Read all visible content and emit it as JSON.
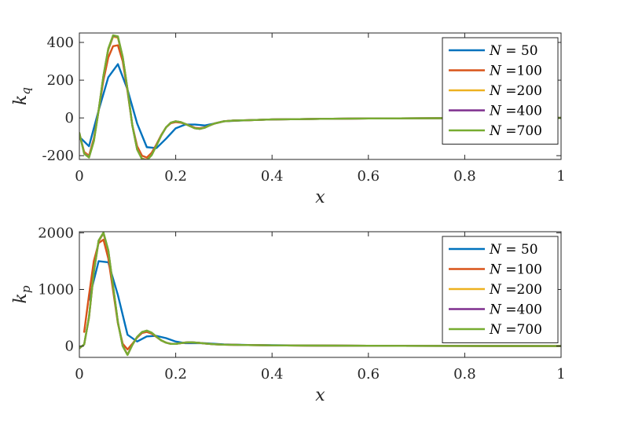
{
  "colors": {
    "N50": "#0072BD",
    "N100": "#D95319",
    "N200": "#EDB120",
    "N400": "#7E2F8E",
    "N700": "#77AC30",
    "axes": "#262626"
  },
  "chart_data": [
    {
      "type": "line",
      "xlabel": "x",
      "ylabel": "k_q",
      "xlim": [
        0,
        1
      ],
      "ylim": [
        -220,
        450
      ],
      "xticks": [
        0,
        0.2,
        0.4,
        0.6,
        0.8,
        1
      ],
      "xtick_labels": [
        "0",
        "0.2",
        "0.4",
        "0.6",
        "0.8",
        "1"
      ],
      "yticks": [
        -200,
        0,
        200,
        400
      ],
      "ytick_labels": [
        "-200",
        "0",
        "200",
        "400"
      ],
      "legend_position": "top-right",
      "series": [
        {
          "name": "N = 50",
          "color_key": "N50",
          "x": [
            0,
            0.02,
            0.04,
            0.06,
            0.08,
            0.1,
            0.12,
            0.14,
            0.16,
            0.18,
            0.2,
            0.22,
            0.24,
            0.26,
            0.28,
            0.3,
            0.35,
            0.4,
            0.5,
            0.6,
            0.8,
            1.0
          ],
          "y": [
            -100,
            -150,
            40,
            215,
            285,
            150,
            -30,
            -155,
            -160,
            -110,
            -55,
            -35,
            -35,
            -40,
            -30,
            -18,
            -12,
            -8,
            -5,
            -3,
            -1,
            0
          ]
        },
        {
          "name": "N =100",
          "color_key": "N100",
          "x": [
            0,
            0.01,
            0.02,
            0.03,
            0.04,
            0.05,
            0.06,
            0.07,
            0.08,
            0.09,
            0.1,
            0.11,
            0.12,
            0.13,
            0.14,
            0.15,
            0.16,
            0.17,
            0.18,
            0.19,
            0.2,
            0.21,
            0.22,
            0.23,
            0.24,
            0.25,
            0.26,
            0.27,
            0.28,
            0.3,
            0.32,
            0.35,
            0.4,
            0.5,
            0.6,
            0.8,
            1.0
          ],
          "y": [
            -85,
            -180,
            -200,
            -110,
            40,
            200,
            320,
            380,
            385,
            300,
            140,
            -40,
            -150,
            -200,
            -210,
            -185,
            -140,
            -90,
            -50,
            -28,
            -22,
            -25,
            -32,
            -42,
            -52,
            -55,
            -50,
            -40,
            -30,
            -18,
            -14,
            -12,
            -8,
            -5,
            -3,
            -1,
            0
          ]
        },
        {
          "name": "N =200",
          "color_key": "N200",
          "x": [
            0,
            0.01,
            0.02,
            0.03,
            0.04,
            0.05,
            0.06,
            0.07,
            0.08,
            0.09,
            0.1,
            0.11,
            0.12,
            0.13,
            0.14,
            0.15,
            0.16,
            0.17,
            0.18,
            0.19,
            0.2,
            0.21,
            0.22,
            0.23,
            0.24,
            0.25,
            0.26,
            0.27,
            0.28,
            0.3,
            0.32,
            0.35,
            0.4,
            0.5,
            0.6,
            0.8,
            1.0
          ],
          "y": [
            -80,
            -185,
            -205,
            -120,
            40,
            220,
            360,
            430,
            425,
            320,
            150,
            -40,
            -165,
            -215,
            -222,
            -195,
            -145,
            -92,
            -50,
            -25,
            -18,
            -22,
            -32,
            -44,
            -55,
            -58,
            -52,
            -40,
            -30,
            -18,
            -14,
            -12,
            -8,
            -5,
            -3,
            -1,
            0
          ]
        },
        {
          "name": "N =400",
          "color_key": "N400",
          "x": [
            0,
            0.01,
            0.02,
            0.03,
            0.04,
            0.05,
            0.06,
            0.07,
            0.08,
            0.09,
            0.1,
            0.11,
            0.12,
            0.13,
            0.14,
            0.15,
            0.16,
            0.17,
            0.18,
            0.19,
            0.2,
            0.21,
            0.22,
            0.23,
            0.24,
            0.25,
            0.26,
            0.27,
            0.28,
            0.3,
            0.32,
            0.35,
            0.4,
            0.5,
            0.6,
            0.8,
            1.0
          ],
          "y": [
            -80,
            -188,
            -208,
            -122,
            40,
            222,
            365,
            435,
            430,
            322,
            150,
            -40,
            -167,
            -217,
            -224,
            -197,
            -146,
            -93,
            -50,
            -25,
            -18,
            -22,
            -32,
            -44,
            -55,
            -58,
            -52,
            -40,
            -30,
            -18,
            -14,
            -12,
            -8,
            -5,
            -3,
            -1,
            0
          ]
        },
        {
          "name": "N =700",
          "color_key": "N700",
          "x": [
            0,
            0.01,
            0.02,
            0.03,
            0.04,
            0.05,
            0.06,
            0.07,
            0.08,
            0.09,
            0.1,
            0.11,
            0.12,
            0.13,
            0.14,
            0.15,
            0.16,
            0.17,
            0.18,
            0.19,
            0.2,
            0.21,
            0.22,
            0.23,
            0.24,
            0.25,
            0.26,
            0.27,
            0.28,
            0.3,
            0.32,
            0.35,
            0.4,
            0.5,
            0.6,
            0.8,
            1.0
          ],
          "y": [
            -80,
            -190,
            -210,
            -124,
            40,
            224,
            367,
            438,
            432,
            323,
            150,
            -40,
            -168,
            -218,
            -225,
            -198,
            -147,
            -93,
            -50,
            -25,
            -18,
            -22,
            -32,
            -44,
            -55,
            -58,
            -52,
            -40,
            -30,
            -18,
            -14,
            -12,
            -8,
            -5,
            -3,
            -1,
            0
          ]
        }
      ]
    },
    {
      "type": "line",
      "xlabel": "x",
      "ylabel": "k_p",
      "xlim": [
        0,
        1
      ],
      "ylim": [
        -200,
        2020
      ],
      "xticks": [
        0,
        0.2,
        0.4,
        0.6,
        0.8,
        1
      ],
      "xtick_labels": [
        "0",
        "0.2",
        "0.4",
        "0.6",
        "0.8",
        "1"
      ],
      "yticks": [
        0,
        1000,
        2000
      ],
      "ytick_labels": [
        "0",
        "1000",
        "2000"
      ],
      "legend_position": "top-right",
      "series": [
        {
          "name": "N = 50",
          "color_key": "N50",
          "x": [
            0.02,
            0.04,
            0.06,
            0.08,
            0.1,
            0.12,
            0.14,
            0.16,
            0.18,
            0.2,
            0.22,
            0.24,
            0.26,
            0.28,
            0.3,
            0.35,
            0.4,
            0.5,
            0.6,
            0.8,
            1.0
          ],
          "y": [
            820,
            1500,
            1480,
            900,
            200,
            80,
            170,
            180,
            140,
            80,
            50,
            50,
            50,
            40,
            30,
            20,
            15,
            8,
            5,
            2,
            0
          ]
        },
        {
          "name": "N =100",
          "color_key": "N100",
          "x": [
            0.01,
            0.02,
            0.03,
            0.04,
            0.05,
            0.06,
            0.07,
            0.08,
            0.09,
            0.1,
            0.11,
            0.12,
            0.13,
            0.14,
            0.15,
            0.16,
            0.17,
            0.18,
            0.19,
            0.2,
            0.21,
            0.22,
            0.23,
            0.24,
            0.25,
            0.26,
            0.27,
            0.28,
            0.3,
            0.35,
            0.4,
            0.5,
            0.6,
            0.8,
            1.0
          ],
          "y": [
            250,
            900,
            1500,
            1820,
            1880,
            1550,
            980,
            400,
            40,
            -60,
            40,
            150,
            230,
            250,
            220,
            160,
            100,
            60,
            40,
            40,
            50,
            60,
            65,
            60,
            55,
            45,
            38,
            32,
            25,
            18,
            12,
            8,
            5,
            2,
            0
          ]
        },
        {
          "name": "N =200",
          "color_key": "N200",
          "x": [
            0,
            0.01,
            0.02,
            0.03,
            0.04,
            0.05,
            0.06,
            0.07,
            0.08,
            0.09,
            0.1,
            0.11,
            0.12,
            0.13,
            0.14,
            0.15,
            0.16,
            0.17,
            0.18,
            0.19,
            0.2,
            0.21,
            0.22,
            0.23,
            0.24,
            0.25,
            0.26,
            0.27,
            0.28,
            0.3,
            0.35,
            0.4,
            0.5,
            0.6,
            0.8,
            1.0
          ],
          "y": [
            -40,
            30,
            500,
            1300,
            1850,
            1990,
            1680,
            1050,
            420,
            0,
            -150,
            20,
            160,
            245,
            270,
            235,
            165,
            100,
            60,
            38,
            38,
            50,
            63,
            68,
            62,
            55,
            45,
            38,
            32,
            25,
            18,
            12,
            8,
            5,
            2,
            0
          ]
        },
        {
          "name": "N =400",
          "color_key": "N400",
          "x": [
            0,
            0.01,
            0.02,
            0.03,
            0.04,
            0.05,
            0.06,
            0.07,
            0.08,
            0.09,
            0.1,
            0.11,
            0.12,
            0.13,
            0.14,
            0.15,
            0.16,
            0.17,
            0.18,
            0.19,
            0.2,
            0.21,
            0.22,
            0.23,
            0.24,
            0.25,
            0.26,
            0.27,
            0.28,
            0.3,
            0.35,
            0.4,
            0.5,
            0.6,
            0.8,
            1.0
          ],
          "y": [
            -40,
            30,
            510,
            1310,
            1860,
            2000,
            1690,
            1055,
            420,
            0,
            -155,
            20,
            162,
            247,
            272,
            236,
            166,
            100,
            60,
            38,
            38,
            50,
            63,
            68,
            62,
            55,
            45,
            38,
            32,
            25,
            18,
            12,
            8,
            5,
            2,
            0
          ]
        },
        {
          "name": "N =700",
          "color_key": "N700",
          "x": [
            0,
            0.01,
            0.02,
            0.03,
            0.04,
            0.05,
            0.06,
            0.07,
            0.08,
            0.09,
            0.1,
            0.11,
            0.12,
            0.13,
            0.14,
            0.15,
            0.16,
            0.17,
            0.18,
            0.19,
            0.2,
            0.21,
            0.22,
            0.23,
            0.24,
            0.25,
            0.26,
            0.27,
            0.28,
            0.3,
            0.35,
            0.4,
            0.5,
            0.6,
            0.8,
            1.0
          ],
          "y": [
            -40,
            30,
            515,
            1315,
            1865,
            2005,
            1695,
            1058,
            420,
            0,
            -158,
            20,
            163,
            248,
            273,
            237,
            166,
            100,
            60,
            38,
            38,
            50,
            63,
            68,
            62,
            55,
            45,
            38,
            32,
            25,
            18,
            12,
            8,
            5,
            2,
            0
          ]
        }
      ]
    }
  ]
}
